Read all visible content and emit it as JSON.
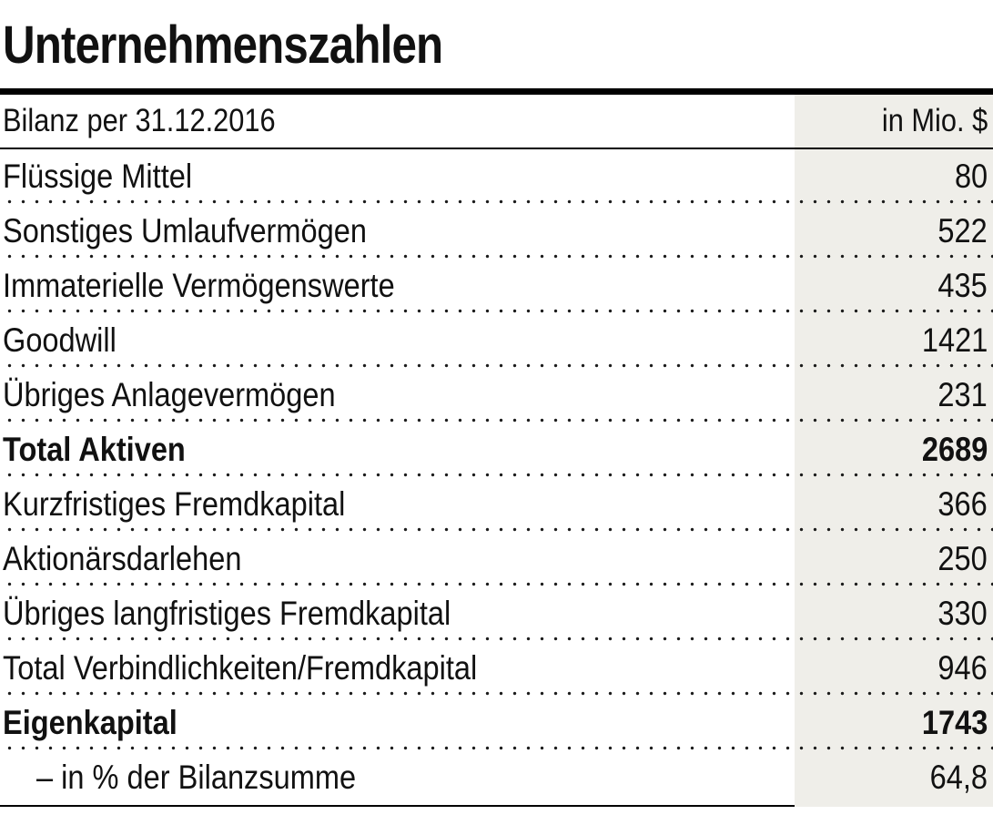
{
  "title": "Unternehmenszahlen",
  "table": {
    "header": {
      "label": "Bilanz per 31.12.2016",
      "unit": "in Mio. $"
    },
    "rows": [
      {
        "label": "Flüssige Mittel",
        "value": "80"
      },
      {
        "label": "Sonstiges Umlaufvermögen",
        "value": "522"
      },
      {
        "label": "Immaterielle Vermögenswerte",
        "value": "435"
      },
      {
        "label": "Goodwill",
        "value": "1421"
      },
      {
        "label": "Übriges Anlagevermögen",
        "value": "231"
      },
      {
        "label": "Total Aktiven",
        "value": "2689"
      },
      {
        "label": "Kurzfristiges Fremdkapital",
        "value": "366"
      },
      {
        "label": "Aktionärsdarlehen",
        "value": "250"
      },
      {
        "label": "Übriges langfristiges Fremdkapital",
        "value": "330"
      },
      {
        "label": "Total Verbindlichkeiten/Fremdkapital",
        "value": "946"
      },
      {
        "label": "Eigenkapital",
        "value": "1743"
      },
      {
        "label": "– in % der Bilanzsumme",
        "value": "64,8"
      }
    ]
  },
  "colors": {
    "value_column_bg": "#EFEEE9",
    "text": "#111111",
    "rule": "#000000",
    "dot": "#1C1C1C",
    "background": "#FFFFFF"
  },
  "chart_data": {
    "type": "table",
    "title": "Unternehmenszahlen",
    "subtitle": "Bilanz per 31.12.2016",
    "unit": "in Mio. $",
    "columns": [
      "Bilanz per 31.12.2016",
      "in Mio. $"
    ],
    "rows": [
      [
        "Flüssige Mittel",
        80
      ],
      [
        "Sonstiges Umlaufvermögen",
        522
      ],
      [
        "Immaterielle Vermögenswerte",
        435
      ],
      [
        "Goodwill",
        1421
      ],
      [
        "Übriges Anlagevermögen",
        231
      ],
      [
        "Total Aktiven",
        2689
      ],
      [
        "Kurzfristiges Fremdkapital",
        366
      ],
      [
        "Aktionärsdarlehen",
        250
      ],
      [
        "Übriges langfristiges Fremdkapital",
        330
      ],
      [
        "Total Verbindlichkeiten/Fremdkapital",
        946
      ],
      [
        "Eigenkapital",
        1743
      ],
      [
        "– in % der Bilanzsumme",
        64.8
      ]
    ],
    "bold_rows": [
      "Total Aktiven",
      "Eigenkapital"
    ],
    "layout": {
      "value_column_shaded": true,
      "row_separator": "dotted",
      "top_rule": "thick",
      "bottom_rule": "thin"
    }
  }
}
